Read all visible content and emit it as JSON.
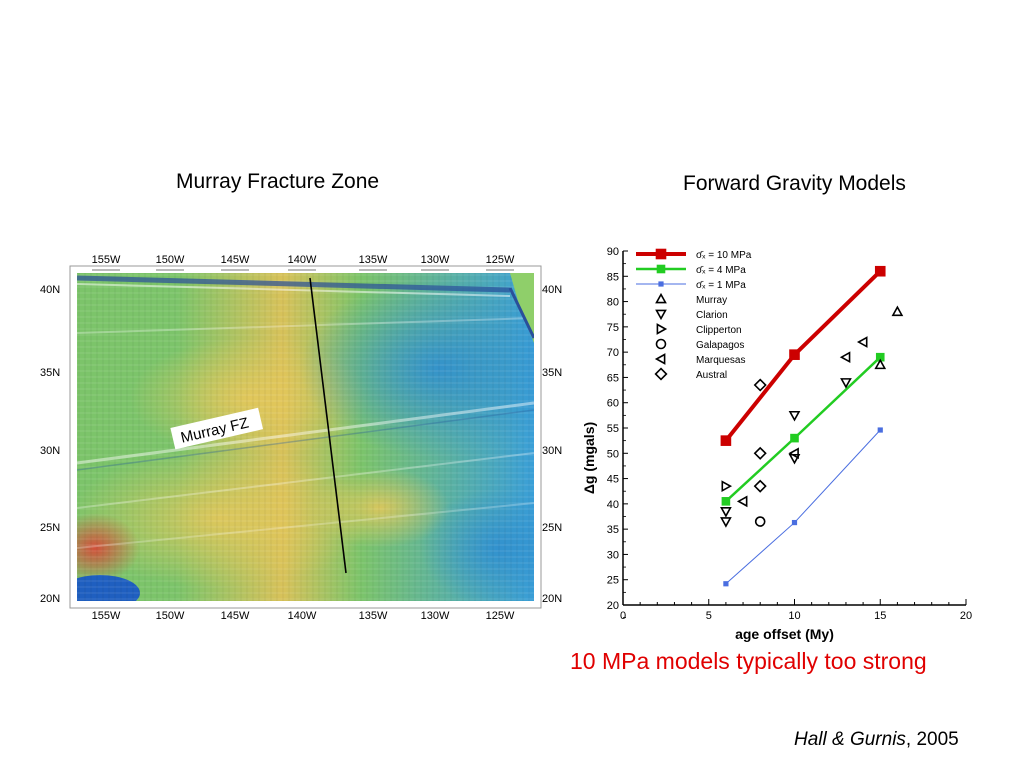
{
  "titles": {
    "map": "Murray Fracture Zone",
    "chart": "Forward Gravity Models"
  },
  "map": {
    "top_longitudes": [
      "155W",
      "150W",
      "145W",
      "140W",
      "135W",
      "130W",
      "125W"
    ],
    "bottom_longitudes": [
      "155W",
      "150W",
      "145W",
      "140W",
      "135W",
      "130W",
      "125W"
    ],
    "left_latitudes": [
      "40N",
      "35N",
      "30N",
      "25N",
      "20N"
    ],
    "right_latitudes": [
      "40N",
      "35N",
      "30N",
      "25N",
      "20N"
    ],
    "fz_label": "Murray FZ",
    "colors": {
      "ocean_blue": "#3a9fd8",
      "mid_green": "#7cc46a",
      "warm_yellow": "#d8c25a",
      "hot_red": "#d2503a",
      "land_green": "#8fcf6a"
    }
  },
  "chart_data": {
    "type": "scatter",
    "xlabel": "age offset (My)",
    "ylabel": "Δg (mgals)",
    "xlim": [
      0,
      20
    ],
    "ylim": [
      20,
      90
    ],
    "x_ticks": [
      "0",
      "5",
      "10",
      "15",
      "20"
    ],
    "y_ticks": [
      "20",
      "25",
      "30",
      "35",
      "40",
      "45",
      "50",
      "55",
      "60",
      "65",
      "70",
      "75",
      "80",
      "85",
      "90"
    ],
    "grid": false,
    "legend_position": "top-left",
    "series": [
      {
        "name": "σ̄ₓ = 10 MPa",
        "kind": "line",
        "marker": "square",
        "color": "#cc0000",
        "x": [
          6,
          10,
          15
        ],
        "y": [
          52.5,
          69.5,
          86
        ]
      },
      {
        "name": "σ̄ₓ = 4 MPa",
        "kind": "line",
        "marker": "square",
        "color": "#22cc22",
        "x": [
          6,
          10,
          15
        ],
        "y": [
          40.5,
          53,
          69
        ]
      },
      {
        "name": "σ̄ₓ = 1 MPa",
        "kind": "line",
        "marker": "square",
        "color": "#4a6ee0",
        "x": [
          6,
          10,
          15
        ],
        "y": [
          24.2,
          36.3,
          54.6
        ]
      },
      {
        "name": "Murray",
        "kind": "points",
        "marker": "triangle-up",
        "color": "#000000",
        "x": [
          15,
          16
        ],
        "y": [
          67.5,
          78
        ]
      },
      {
        "name": "Clarion",
        "kind": "points",
        "marker": "triangle-down",
        "color": "#000000",
        "x": [
          6,
          6,
          10,
          10,
          13
        ],
        "y": [
          36.5,
          38.5,
          49,
          57.5,
          64
        ]
      },
      {
        "name": "Clipperton",
        "kind": "points",
        "marker": "triangle-right",
        "color": "#000000",
        "x": [
          6
        ],
        "y": [
          43.5
        ]
      },
      {
        "name": "Galapagos",
        "kind": "points",
        "marker": "circle",
        "color": "#000000",
        "x": [
          8
        ],
        "y": [
          36.5
        ]
      },
      {
        "name": "Marquesas",
        "kind": "points",
        "marker": "triangle-left",
        "color": "#000000",
        "x": [
          7,
          10,
          13,
          14
        ],
        "y": [
          40.5,
          50,
          69,
          72
        ]
      },
      {
        "name": "Austral",
        "kind": "points",
        "marker": "diamond",
        "color": "#000000",
        "x": [
          8,
          8,
          8
        ],
        "y": [
          43.5,
          50,
          63.5
        ]
      }
    ]
  },
  "conclusion": {
    "text": "10 MPa models typically too strong",
    "color": "#e00000"
  },
  "citation": {
    "authors": "Hall & Gurnis",
    "year": ", 2005"
  }
}
